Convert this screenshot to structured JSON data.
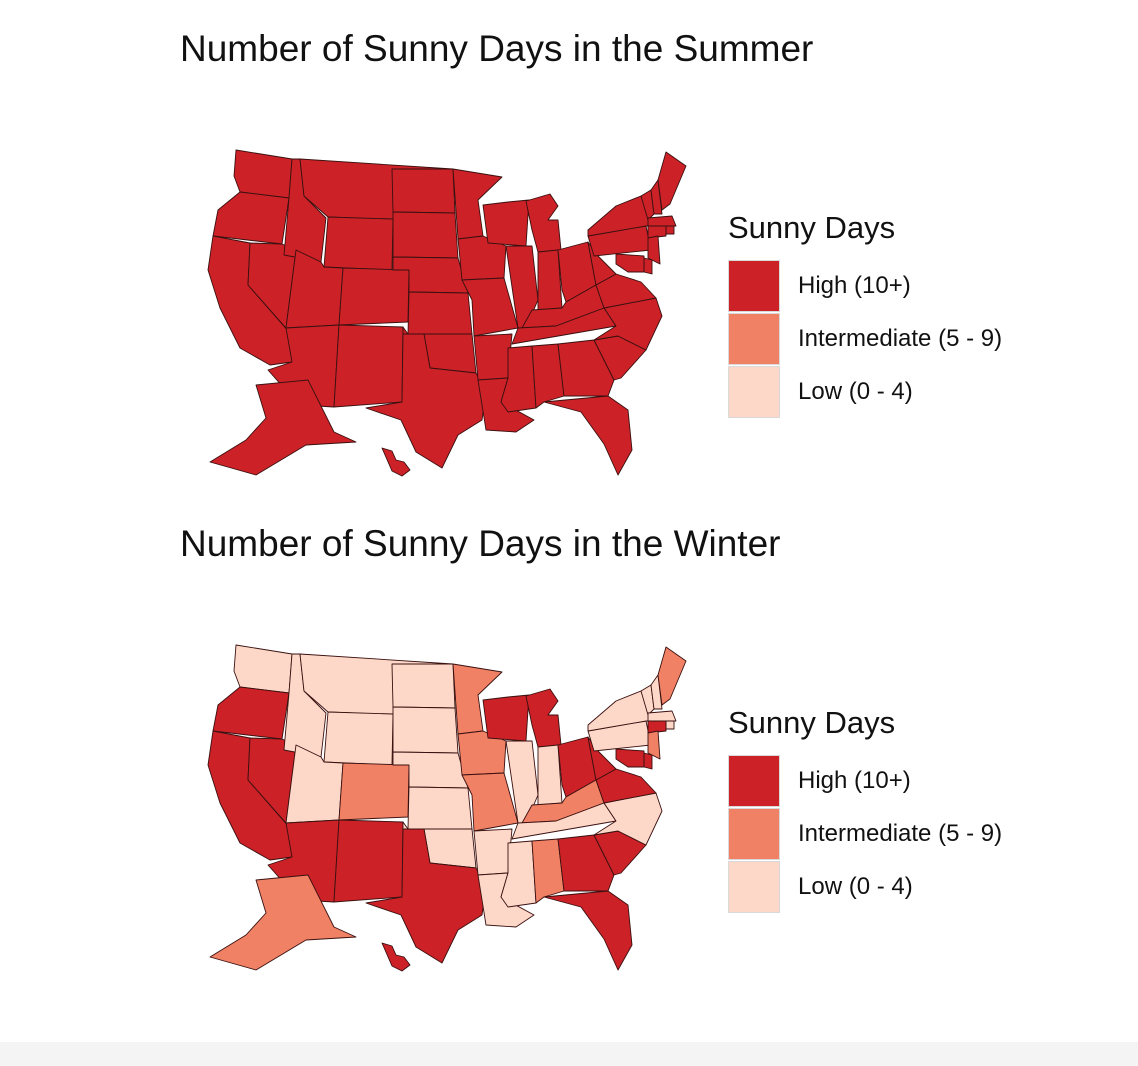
{
  "colors": {
    "high": "#cb2127",
    "intermediate": "#f08165",
    "low": "#fdd8c8",
    "border": "#3a1010"
  },
  "legend_order": [
    "high",
    "intermediate",
    "low"
  ],
  "maps": [
    {
      "title": "Number of Sunny Days in the Summer",
      "legend": {
        "title": "Sunny Days",
        "items": [
          {
            "key": "high",
            "label": "High (10+)"
          },
          {
            "key": "intermediate",
            "label": "Intermediate (5 - 9)"
          },
          {
            "key": "low",
            "label": "Low (0 - 4)"
          }
        ]
      },
      "default_category": "high",
      "states": {}
    },
    {
      "title": "Number of Sunny Days in the Winter",
      "legend": {
        "title": "Sunny Days",
        "items": [
          {
            "key": "high",
            "label": "High (10+)"
          },
          {
            "key": "intermediate",
            "label": "Intermediate (5 - 9)"
          },
          {
            "key": "low",
            "label": "Low (0 - 4)"
          }
        ]
      },
      "default_category": "low",
      "states": {
        "OR": "high",
        "CA": "high",
        "NV": "high",
        "AZ": "high",
        "NM": "high",
        "TX": "high",
        "WI": "high",
        "MI": "high",
        "OH": "high",
        "WV": "high",
        "VA": "high",
        "MD": "high",
        "DE": "high",
        "CT": "high",
        "GA": "high",
        "SC": "high",
        "FL": "high",
        "HI": "high",
        "CO": "intermediate",
        "MN": "intermediate",
        "IA": "intermediate",
        "MO": "intermediate",
        "KY": "intermediate",
        "AL": "intermediate",
        "NJ": "intermediate",
        "ME": "intermediate",
        "AK": "intermediate"
      }
    }
  ]
}
